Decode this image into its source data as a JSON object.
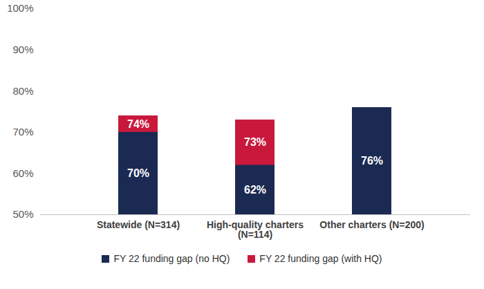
{
  "chart_data": {
    "type": "bar",
    "categories": [
      "Statewide (N=314)",
      "High-quality charters (N=114)",
      "Other charters (N=200)"
    ],
    "series": [
      {
        "name": "FY 22 funding gap (no HQ)",
        "color": "#1b2a52",
        "values": [
          70,
          62,
          76
        ],
        "value_labels": [
          "70%",
          "62%",
          "76%"
        ]
      },
      {
        "name": "FY 22 funding gap (with HQ)",
        "color": "#c8193c",
        "values": [
          74,
          73,
          null
        ],
        "value_labels": [
          "74%",
          "73%",
          null
        ]
      }
    ],
    "stacked": false,
    "data_labels": true,
    "grid": false,
    "legend": "bottom",
    "ylim": [
      50,
      100
    ],
    "yticks": [
      {
        "value": 50,
        "label": "50%"
      },
      {
        "value": 60,
        "label": "60%"
      },
      {
        "value": 70,
        "label": "70%"
      },
      {
        "value": 80,
        "label": "80%"
      },
      {
        "value": 90,
        "label": "90%"
      },
      {
        "value": 100,
        "label": "100%"
      }
    ]
  }
}
